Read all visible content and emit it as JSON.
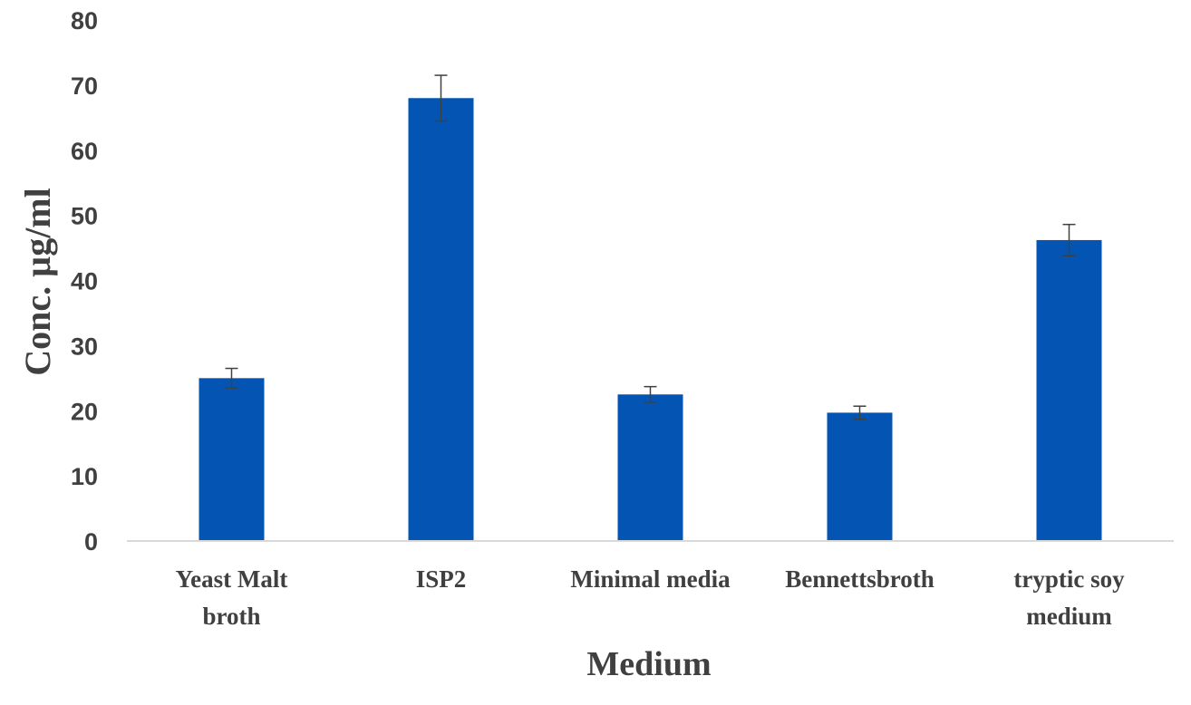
{
  "chart_data": {
    "type": "bar",
    "title": "",
    "xlabel": "Medium",
    "ylabel": "Conc. µg/ml",
    "ylim": [
      0,
      80
    ],
    "yticks": [
      "0",
      "10",
      "20",
      "30",
      "40",
      "50",
      "60",
      "70",
      "80"
    ],
    "categories": [
      [
        "Yeast Malt",
        "broth"
      ],
      [
        "ISP2"
      ],
      [
        "Minimal media"
      ],
      [
        "Bennettsbroth"
      ],
      [
        "tryptic soy",
        "medium"
      ]
    ],
    "values": [
      25,
      68,
      22.5,
      19.7,
      46.2
    ],
    "errors": [
      1.5,
      3.5,
      1.2,
      1.0,
      2.4
    ],
    "grid": false,
    "legend": "none",
    "bar_color": "#0455b3",
    "axis_color": "#d9d9d9",
    "error_color": "#404040"
  }
}
